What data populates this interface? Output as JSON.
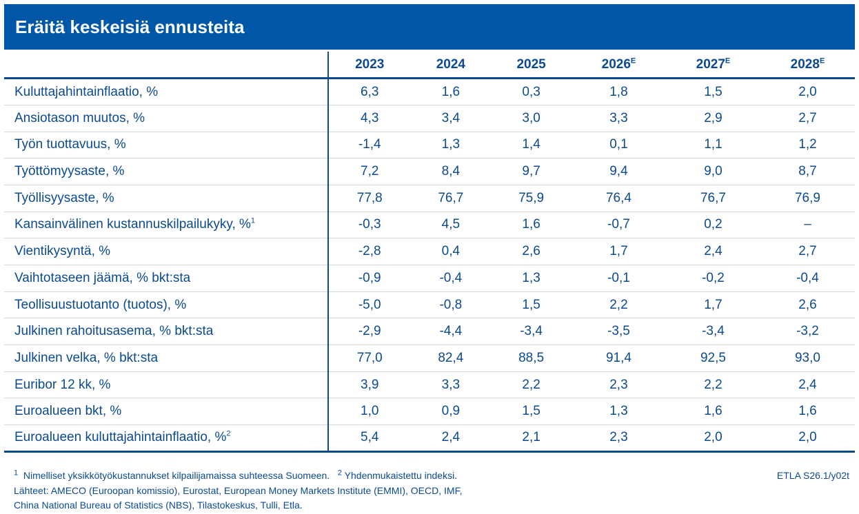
{
  "title": "Eräitä keskeisiä ennusteita",
  "columns": [
    {
      "year": "2023",
      "sup": ""
    },
    {
      "year": "2024",
      "sup": ""
    },
    {
      "year": "2025",
      "sup": ""
    },
    {
      "year": "2026",
      "sup": "E"
    },
    {
      "year": "2027",
      "sup": "E"
    },
    {
      "year": "2028",
      "sup": "E"
    }
  ],
  "rows": [
    {
      "label": "Kuluttajahintainflaatio, %",
      "sup": "",
      "values": [
        "6,3",
        "1,6",
        "0,3",
        "1,8",
        "1,5",
        "2,0"
      ]
    },
    {
      "label": "Ansiotason muutos, %",
      "sup": "",
      "values": [
        "4,3",
        "3,4",
        "3,0",
        "3,3",
        "2,9",
        "2,7"
      ]
    },
    {
      "label": "Työn tuottavuus, %",
      "sup": "",
      "values": [
        "-1,4",
        "1,3",
        "1,4",
        "0,1",
        "1,1",
        "1,2"
      ]
    },
    {
      "label": "Työttömyysaste, %",
      "sup": "",
      "values": [
        "7,2",
        "8,4",
        "9,7",
        "9,4",
        "9,0",
        "8,7"
      ]
    },
    {
      "label": "Työllisyysaste, %",
      "sup": "",
      "values": [
        "77,8",
        "76,7",
        "75,9",
        "76,4",
        "76,7",
        "76,9"
      ]
    },
    {
      "label": "Kansainvälinen kustannuskilpailukyky, %",
      "sup": "1",
      "values": [
        "-0,3",
        "4,5",
        "1,6",
        "-0,7",
        "0,2",
        "–"
      ]
    },
    {
      "label": "Vientikysyntä, %",
      "sup": "",
      "values": [
        "-2,8",
        "0,4",
        "2,6",
        "1,7",
        "2,4",
        "2,7"
      ]
    },
    {
      "label": "Vaihtotaseen jäämä, % bkt:sta",
      "sup": "",
      "values": [
        "-0,9",
        "-0,4",
        "1,3",
        "-0,1",
        "-0,2",
        "-0,4"
      ]
    },
    {
      "label": "Teollisuustuotanto (tuotos), %",
      "sup": "",
      "values": [
        "-5,0",
        "-0,8",
        "1,5",
        "2,2",
        "1,7",
        "2,6"
      ]
    },
    {
      "label": "Julkinen rahoitusasema, % bkt:sta",
      "sup": "",
      "values": [
        "-2,9",
        "-4,4",
        "-3,4",
        "-3,5",
        "-3,4",
        "-3,2"
      ]
    },
    {
      "label": "Julkinen velka, % bkt:sta",
      "sup": "",
      "values": [
        "77,0",
        "82,4",
        "88,5",
        "91,4",
        "92,5",
        "93,0"
      ]
    },
    {
      "label": "Euribor 12 kk, %",
      "sup": "",
      "values": [
        "3,9",
        "3,3",
        "2,2",
        "2,3",
        "2,2",
        "2,4"
      ]
    },
    {
      "label": "Euroalueen bkt, %",
      "sup": "",
      "values": [
        "1,0",
        "0,9",
        "1,5",
        "1,3",
        "1,6",
        "1,6"
      ]
    },
    {
      "label": "Euroalueen kuluttajahintainflaatio, %",
      "sup": "2",
      "values": [
        "5,4",
        "2,4",
        "2,1",
        "2,3",
        "2,0",
        "2,0"
      ]
    }
  ],
  "footnotes": {
    "note1_mark": "1",
    "note1": "Nimelliset yksikkötyökustannukset kilpailijamaissa suhteessa Suomeen.",
    "note2_mark": "2",
    "note2": "Yhdenmukaistettu indeksi.",
    "sources_line1": "Lähteet: AMECO (Euroopan komissio), Eurostat, European Money Markets Institute (EMMI), OECD, IMF,",
    "sources_line2": "China National Bureau of Statistics (NBS), Tilastokeskus, Tulli, Etla.",
    "code": "ETLA S26.1/y02t"
  },
  "colors": {
    "brand_blue": "#0057a8",
    "text": "#0b4a90"
  }
}
